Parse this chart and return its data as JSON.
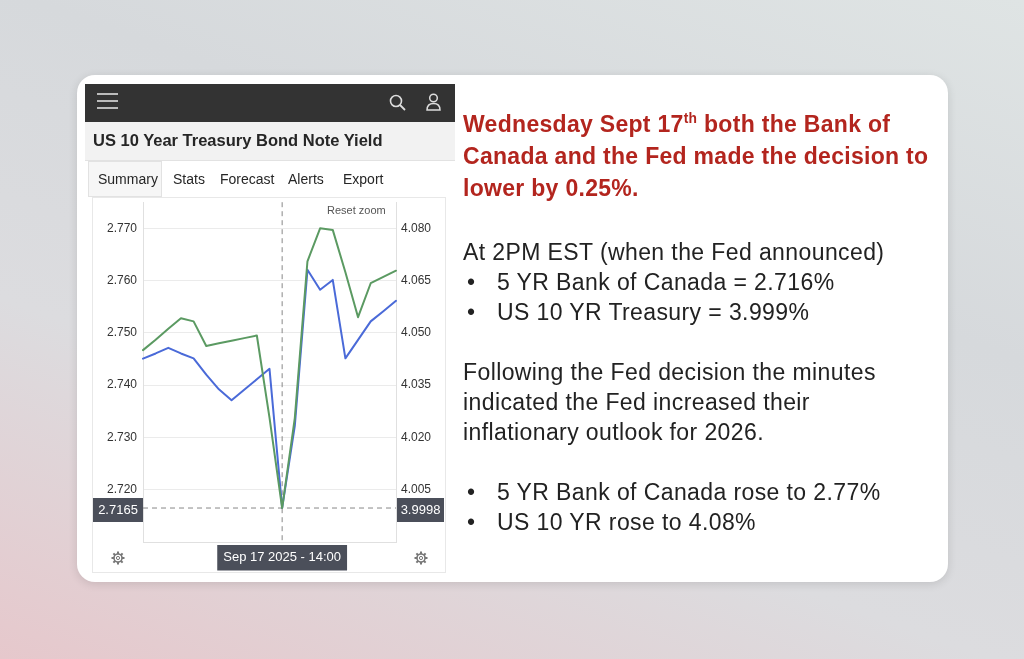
{
  "chart_data": {
    "type": "line",
    "title": "US 10 Year Treasury Bond Note Yield",
    "categories": [
      null,
      null,
      null,
      null,
      null,
      null,
      null,
      null,
      null,
      null,
      null,
      "Sep 17 2025 - 14:00",
      null,
      null,
      null,
      null,
      null,
      null,
      null,
      null,
      null
    ],
    "series": [
      {
        "color": "#5b9a62",
        "values": [
          2.7467,
          2.7487,
          2.7508,
          2.7528,
          2.7522,
          2.7475,
          2.748,
          2.7485,
          2.749,
          2.7495,
          2.7338,
          2.7165,
          2.7337,
          2.7637,
          2.77,
          2.7697,
          2.7616,
          2.753,
          2.7595,
          2.7607,
          2.7619
        ]
      },
      {
        "color": "#4a6ad8",
        "axis": "y2",
        "values": [
          4.0426,
          4.0441,
          4.0457,
          4.0441,
          4.0427,
          4.038,
          4.0338,
          4.0307,
          4.0337,
          4.0367,
          4.0397,
          3.9998,
          4.0233,
          4.0681,
          4.0624,
          4.0652,
          4.0427,
          4.048,
          4.0533,
          4.0562,
          4.0592
        ]
      }
    ],
    "ylim": [
      2.71,
      2.775
    ],
    "yticks": [
      {
        "value": 2.72,
        "label": "2.720"
      },
      {
        "value": 2.73,
        "label": "2.730"
      },
      {
        "value": 2.74,
        "label": "2.740"
      },
      {
        "value": 2.75,
        "label": "2.750"
      },
      {
        "value": 2.76,
        "label": "2.760"
      },
      {
        "value": 2.77,
        "label": "2.770"
      }
    ],
    "y2lim": [
      3.99,
      4.0875
    ],
    "y2ticks": [
      4.005,
      {
        "value": 4.02,
        "label": "4.020"
      },
      4.035,
      {
        "value": 4.05,
        "label": "4.050"
      },
      4.065,
      {
        "value": 4.08,
        "label": "4.080"
      }
    ],
    "grid": "y",
    "ref_lines": [
      {
        "axis": "x",
        "value": "Sep 17 2025 - 14:00",
        "color": "#888888",
        "line_style": "dashed"
      },
      {
        "axis": "y",
        "value": 2.7165,
        "label": "2.7165",
        "color": "#888888",
        "line_style": "dashed"
      }
    ],
    "annotations": [
      "Summary",
      "Stats",
      "Forecast",
      "Alerts",
      "Export",
      "Reset zoom",
      "3.9998",
      "Wednesday Sept 17$^{th}$ both the Bank of Canada and the Fed made the decision to lower by 0.25%.",
      "At 2PM EST (when the Fed announced)",
      "•\t5 YR Bank of Canada = 2.716%",
      "•\tUS 10 YR Treasury = 3.999%",
      "Following the Fed decision the minutes indicated the Fed increased their inflationary outlook for 2026.",
      "•\t5 YR Bank of Canada rose to 2.77%",
      "•\tUS 10 YR rose to 4.08%"
    ]
  }
}
